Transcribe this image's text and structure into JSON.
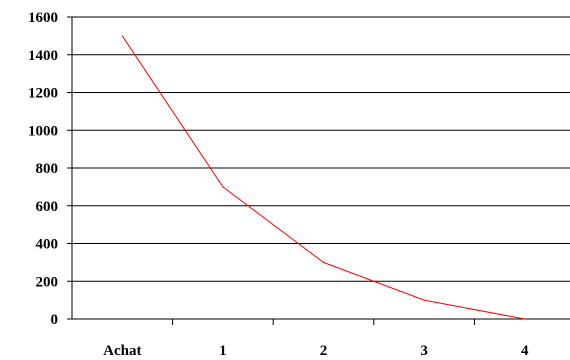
{
  "chart_data": {
    "type": "line",
    "categories": [
      "Achat",
      "1",
      "2",
      "3",
      "4"
    ],
    "series": [
      {
        "values": [
          1500,
          700,
          300,
          100,
          0
        ],
        "color": "#ff0000"
      }
    ],
    "y_ticks": [
      "0",
      "200",
      "400",
      "600",
      "800",
      "1000",
      "1200",
      "1400",
      "1600"
    ],
    "ylim": [
      0,
      1600
    ],
    "grid": true,
    "legend": "none",
    "colors": {
      "grid": "#000000",
      "axis": "#000000",
      "line": "#ff0000",
      "background": "#ffffff"
    }
  }
}
